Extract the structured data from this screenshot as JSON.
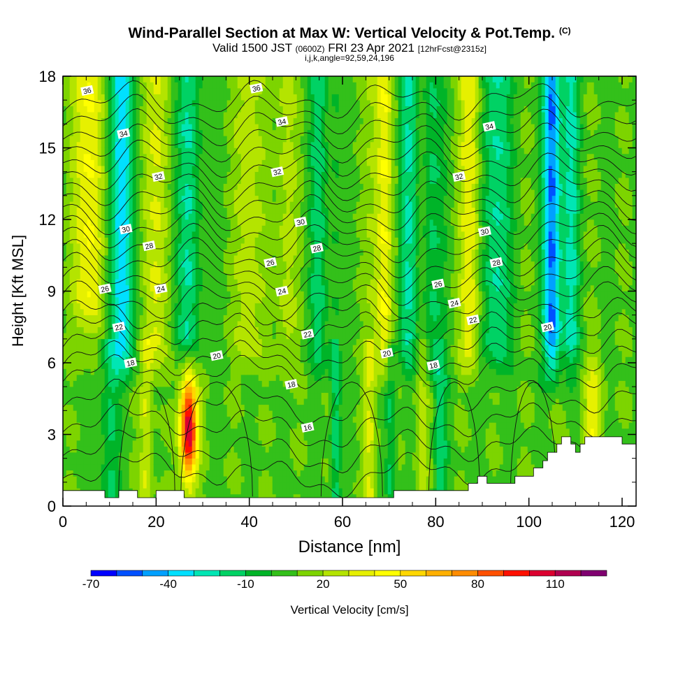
{
  "header": {
    "title": "Wind-Parallel Section at Max W: Vertical Velocity & Pot.Temp.",
    "copyright": "(C)",
    "valid_a": "Valid 1500 JST",
    "valid_utc": "(0600Z)",
    "valid_b": "FRI 23 Apr 2021",
    "forecast": "[12hrFcst@2315z]",
    "indices": "i,j,k,angle=92,59,24,196"
  },
  "chart_data": {
    "type": "heatmap",
    "xlabel": "Distance [nm]",
    "ylabel": "Height [Kft MSL]",
    "xlim": [
      0,
      123
    ],
    "ylim": [
      0,
      18
    ],
    "x_ticks": [
      0,
      20,
      40,
      60,
      80,
      100,
      120
    ],
    "x_tick_labels": [
      "0",
      "20",
      "40",
      "60",
      "80",
      "100",
      "120"
    ],
    "y_ticks": [
      0,
      3,
      6,
      9,
      12,
      15,
      18
    ],
    "y_tick_labels": [
      "0",
      "3",
      "6",
      "9",
      "12",
      "15",
      "18"
    ],
    "colorbar": {
      "label": "Vertical Velocity [cm/s]",
      "tick_labels": [
        "-70",
        "-40",
        "-10",
        "20",
        "50",
        "80",
        "110"
      ],
      "levels": [
        -70,
        -60,
        -50,
        -40,
        -30,
        -20,
        -10,
        0,
        10,
        20,
        30,
        40,
        50,
        60,
        70,
        80,
        90,
        100,
        110,
        120,
        130
      ],
      "colors": [
        "#0000ff",
        "#0050ff",
        "#00a0ff",
        "#00e0ff",
        "#00e6b4",
        "#00d264",
        "#00b428",
        "#33c01a",
        "#7dd400",
        "#b4e400",
        "#e6f000",
        "#ffff00",
        "#ffd700",
        "#ffb000",
        "#ff8c00",
        "#ff5000",
        "#ff1000",
        "#dc0030",
        "#b00050",
        "#800070"
      ]
    },
    "contour_labels": [
      {
        "text": "36",
        "x": 5.2,
        "y": 17.4
      },
      {
        "text": "36",
        "x": 41.5,
        "y": 17.5
      },
      {
        "text": "34",
        "x": 13,
        "y": 15.6
      },
      {
        "text": "34",
        "x": 47,
        "y": 16.1
      },
      {
        "text": "34",
        "x": 91.5,
        "y": 15.9
      },
      {
        "text": "32",
        "x": 20.5,
        "y": 13.8
      },
      {
        "text": "32",
        "x": 46,
        "y": 14.0
      },
      {
        "text": "32",
        "x": 85,
        "y": 13.8
      },
      {
        "text": "30",
        "x": 13.5,
        "y": 11.6
      },
      {
        "text": "30",
        "x": 51,
        "y": 11.9
      },
      {
        "text": "30",
        "x": 90.5,
        "y": 11.5
      },
      {
        "text": "28",
        "x": 18.5,
        "y": 10.9
      },
      {
        "text": "28",
        "x": 54.5,
        "y": 10.8
      },
      {
        "text": "28",
        "x": 93,
        "y": 10.2
      },
      {
        "text": "26",
        "x": 44.5,
        "y": 10.2
      },
      {
        "text": "26",
        "x": 80.5,
        "y": 9.3
      },
      {
        "text": "26",
        "x": 9,
        "y": 9.1
      },
      {
        "text": "24",
        "x": 21,
        "y": 9.1
      },
      {
        "text": "24",
        "x": 47,
        "y": 9.0
      },
      {
        "text": "24",
        "x": 84,
        "y": 8.5
      },
      {
        "text": "22",
        "x": 12,
        "y": 7.5
      },
      {
        "text": "22",
        "x": 52.5,
        "y": 7.2
      },
      {
        "text": "22",
        "x": 88,
        "y": 7.8
      },
      {
        "text": "20",
        "x": 33,
        "y": 6.3
      },
      {
        "text": "20",
        "x": 69.5,
        "y": 6.4
      },
      {
        "text": "20",
        "x": 104,
        "y": 7.5
      },
      {
        "text": "18",
        "x": 14.5,
        "y": 6.0
      },
      {
        "text": "18",
        "x": 49,
        "y": 5.1
      },
      {
        "text": "18",
        "x": 79.5,
        "y": 5.9
      },
      {
        "text": "16",
        "x": 52.5,
        "y": 3.3
      }
    ]
  }
}
